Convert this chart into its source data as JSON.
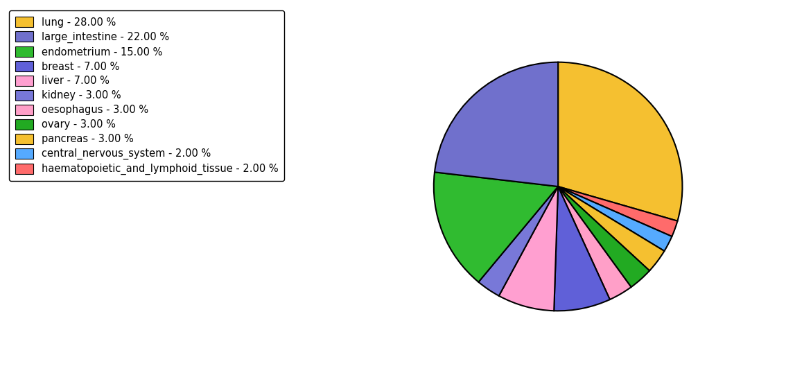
{
  "pie_values": [
    28,
    2,
    2,
    3,
    3,
    3,
    7,
    7,
    3,
    15,
    22
  ],
  "pie_colors": [
    "#F5C030",
    "#FF6B6B",
    "#55AAFF",
    "#F5C030",
    "#22AA22",
    "#FF9FC8",
    "#6060D8",
    "#FF9FD0",
    "#7878D8",
    "#30BB30",
    "#7070CC"
  ],
  "legend_labels": [
    "lung - 28.00 %",
    "large_intestine - 22.00 %",
    "endometrium - 15.00 %",
    "breast - 7.00 %",
    "liver - 7.00 %",
    "kidney - 3.00 %",
    "oesophagus - 3.00 %",
    "ovary - 3.00 %",
    "pancreas - 3.00 %",
    "central_nervous_system - 2.00 %",
    "haematopoietic_and_lymphoid_tissue - 2.00 %"
  ],
  "legend_colors": [
    "#F5C030",
    "#7070CC",
    "#30BB30",
    "#6060D8",
    "#FF9FD0",
    "#7878D8",
    "#FF9FC8",
    "#22AA22",
    "#F5C030",
    "#55AAFF",
    "#FF6B6B"
  ],
  "startangle": 90,
  "figsize": [
    11.34,
    5.38
  ],
  "dpi": 100
}
